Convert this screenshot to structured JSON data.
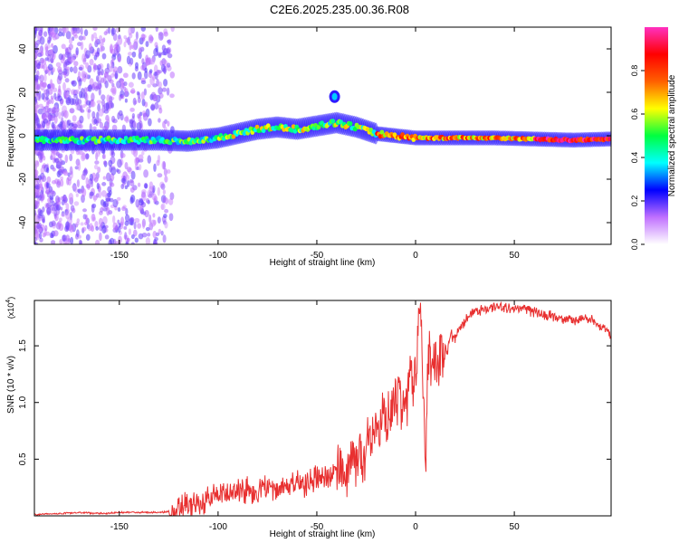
{
  "title": "C2E6.2025.235.00.36.R08",
  "colors": {
    "snr_line": "#e83030",
    "axis": "#000000",
    "background": "#ffffff"
  },
  "chart_data": [
    {
      "type": "heatmap",
      "name": "spectrogram",
      "xlabel": "Height of straight line (km)",
      "ylabel": "Frequency (Hz)",
      "xlim": [
        -193,
        99
      ],
      "ylim": [
        -50,
        50
      ],
      "x_ticks": [
        -150,
        -100,
        -50,
        0,
        50
      ],
      "x_tick_labels": [
        "-150",
        "-100",
        "-50",
        "0",
        "50"
      ],
      "y_ticks": [
        -40,
        -20,
        0,
        20,
        40
      ],
      "y_tick_labels": [
        "-40",
        "-20",
        "0",
        "20",
        "40"
      ],
      "ridge": {
        "x": [
          -193,
          -160,
          -130,
          -115,
          -100,
          -90,
          -80,
          -70,
          -60,
          -50,
          -40,
          -30,
          -20,
          -10,
          0,
          10,
          20,
          40,
          60,
          80,
          99
        ],
        "freq": [
          -2,
          -2,
          -2,
          -2.5,
          -1,
          1,
          3,
          4,
          3,
          4.5,
          6,
          4,
          1,
          0,
          -1,
          -1,
          -1,
          -1,
          -1.5,
          -2,
          -1.5
        ]
      },
      "notable_feature": {
        "x": -41,
        "freq": 18
      }
    },
    {
      "type": "colorbar",
      "name": "normalized-amplitude-scale",
      "label": "Normalized spectral amplitude",
      "range": [
        0,
        1
      ],
      "ticks": [
        0.0,
        0.2,
        0.4,
        0.6,
        0.8
      ],
      "tick_labels": [
        "0.0",
        "0.2",
        "0.4",
        "0.6",
        "0.8"
      ],
      "stops": [
        "#ffffff",
        "#c070ff",
        "#0000ff",
        "#00ffff",
        "#00ff40",
        "#ffff00",
        "#ff6000",
        "#ff0000",
        "#ff30c0"
      ]
    },
    {
      "type": "line",
      "name": "snr",
      "xlabel": "Height of straight line (km)",
      "ylabel": "SNR (10 * v/v)",
      "scale_label": "(x10",
      "scale_exp": "4",
      "scale_close": ")",
      "xlim": [
        -193,
        99
      ],
      "ylim": [
        0,
        1.9
      ],
      "x_ticks": [
        -150,
        -100,
        -50,
        0,
        50
      ],
      "x_tick_labels": [
        "-150",
        "-100",
        "-50",
        "0",
        "50"
      ],
      "y_ticks": [
        0.5,
        1.0,
        1.5
      ],
      "y_tick_labels": [
        "0.5",
        "1.0",
        "1.5"
      ],
      "series": [
        {
          "name": "SNR",
          "x": [
            -193,
            -180,
            -170,
            -160,
            -150,
            -140,
            -130,
            -122,
            -118,
            -112,
            -106,
            -100,
            -95,
            -90,
            -85,
            -80,
            -75,
            -70,
            -65,
            -60,
            -55,
            -50,
            -45,
            -40,
            -35,
            -32,
            -30,
            -28,
            -26,
            -24,
            -22,
            -20,
            -18,
            -16,
            -14,
            -12,
            -10,
            -8,
            -6,
            -4,
            -2,
            0,
            2,
            3,
            4,
            5,
            6,
            7,
            8,
            10,
            12,
            14,
            16,
            18,
            20,
            22,
            25,
            28,
            30,
            35,
            40,
            45,
            50,
            55,
            60,
            65,
            70,
            75,
            80,
            85,
            90,
            95,
            99
          ],
          "y": [
            0.01,
            0.02,
            0.03,
            0.02,
            0.03,
            0.03,
            0.03,
            0.04,
            0.09,
            0.1,
            0.14,
            0.18,
            0.17,
            0.21,
            0.23,
            0.2,
            0.26,
            0.24,
            0.25,
            0.3,
            0.27,
            0.35,
            0.33,
            0.44,
            0.38,
            0.55,
            0.5,
            0.62,
            0.48,
            0.75,
            0.62,
            0.85,
            0.75,
            0.9,
            0.85,
            1.0,
            1.05,
            1.0,
            1.15,
            1.05,
            1.3,
            1.2,
            1.85,
            1.6,
            0.9,
            0.42,
            1.3,
            1.55,
            1.2,
            1.45,
            1.3,
            1.55,
            1.45,
            1.6,
            1.55,
            1.65,
            1.72,
            1.78,
            1.8,
            1.82,
            1.85,
            1.84,
            1.83,
            1.82,
            1.8,
            1.78,
            1.76,
            1.74,
            1.72,
            1.76,
            1.72,
            1.66,
            1.57
          ]
        }
      ]
    }
  ]
}
